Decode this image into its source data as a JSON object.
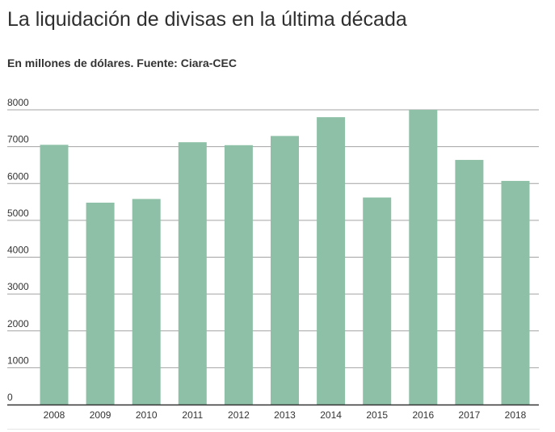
{
  "title": "La liquidación de divisas en la última década",
  "subtitle": "En millones de dólares. Fuente: Ciara-CEC",
  "chart_data": {
    "type": "bar",
    "title": "La liquidación de divisas en la última década",
    "subtitle": "En millones de dólares. Fuente: Ciara-CEC",
    "xlabel": "",
    "ylabel": "",
    "categories": [
      "2008",
      "2009",
      "2010",
      "2011",
      "2012",
      "2013",
      "2014",
      "2015",
      "2016",
      "2017",
      "2018"
    ],
    "values": [
      7050,
      5480,
      5580,
      7120,
      7040,
      7290,
      7800,
      5620,
      8000,
      6640,
      6070
    ],
    "ylim": [
      0,
      8000
    ],
    "yticks": [
      0,
      1000,
      2000,
      3000,
      4000,
      5000,
      6000,
      7000,
      8000
    ],
    "grid": true,
    "legend": "none",
    "colors": {
      "bar": "#8dc0a6",
      "grid": "#a3a3a3",
      "baseline": "#333333",
      "text": "#333333"
    }
  }
}
